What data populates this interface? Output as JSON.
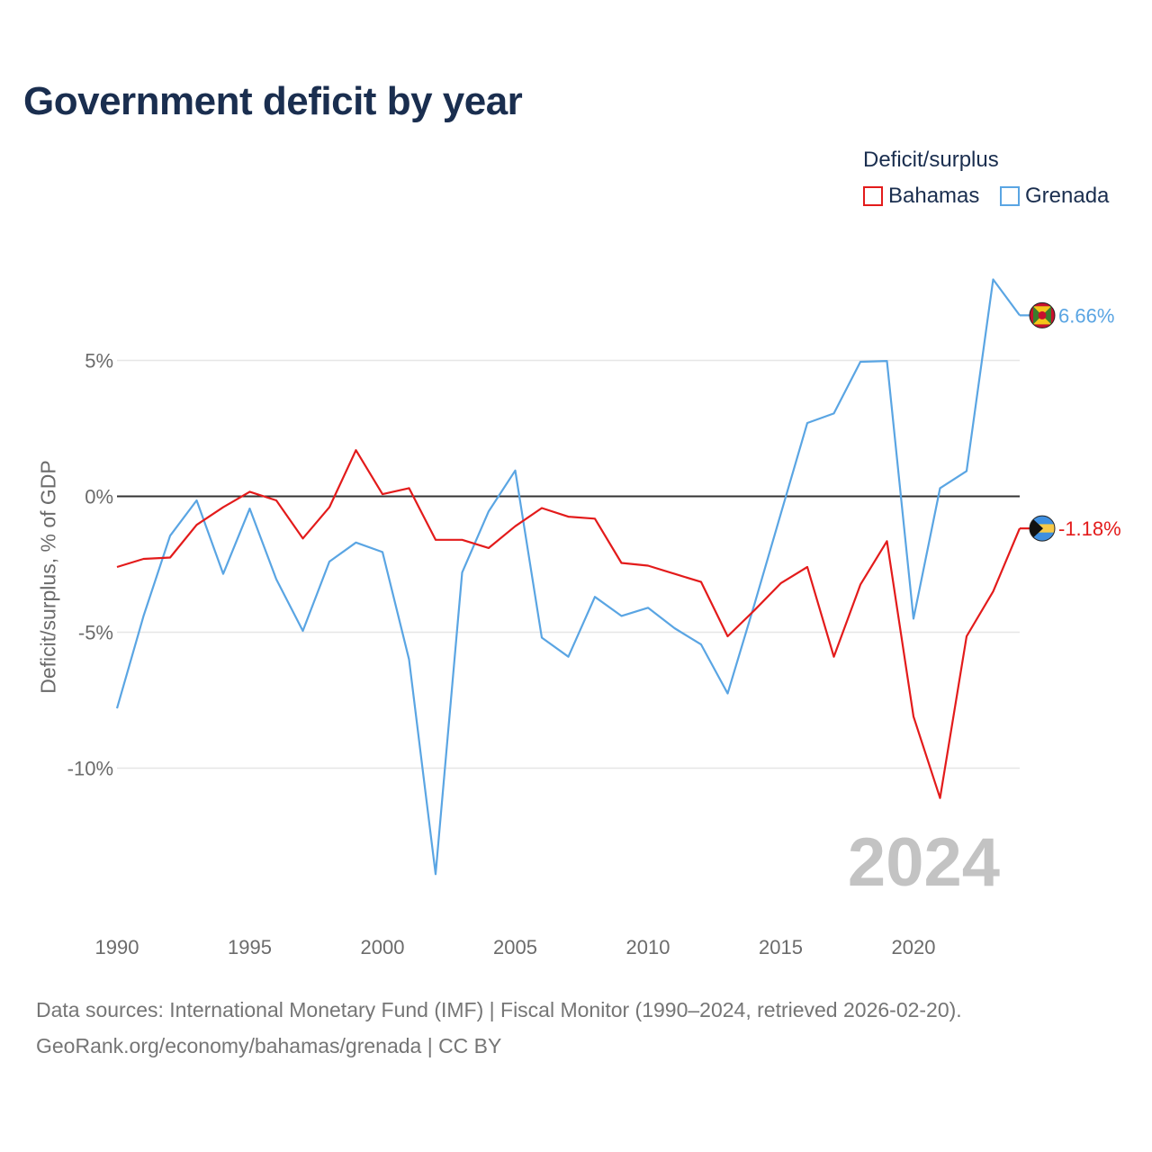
{
  "header": {
    "title": "Government deficit by year"
  },
  "legend": {
    "title": "Deficit/surplus",
    "items": [
      {
        "label": "Bahamas",
        "color": "#e31b1b"
      },
      {
        "label": "Grenada",
        "color": "#5aa5e3"
      }
    ]
  },
  "footer": {
    "source_line": "Data sources: International Monetary Fund (IMF) | Fiscal Monitor (1990–2024, retrieved 2026-02-20).",
    "url_line": "GeoRank.org/economy/bahamas/grenada | CC BY"
  },
  "chart_data": {
    "type": "line",
    "title": "Government deficit by year",
    "xlabel": "",
    "ylabel": "Deficit/surplus, % of GDP",
    "xlim": [
      1990,
      2024
    ],
    "ylim": [
      -15,
      8.5
    ],
    "x_ticks": [
      1990,
      1995,
      2000,
      2005,
      2010,
      2015,
      2020
    ],
    "y_ticks": [
      5,
      0,
      -5,
      -10
    ],
    "y_tick_labels": [
      "5%",
      "0%",
      "-5%",
      "-10%"
    ],
    "year_watermark": "2024",
    "grid": true,
    "legend_position": "top-right",
    "x": [
      1990,
      1991,
      1992,
      1993,
      1994,
      1995,
      1996,
      1997,
      1998,
      1999,
      2000,
      2001,
      2002,
      2003,
      2004,
      2005,
      2006,
      2007,
      2008,
      2009,
      2010,
      2011,
      2012,
      2013,
      2014,
      2015,
      2016,
      2017,
      2018,
      2019,
      2020,
      2021,
      2022,
      2023,
      2024
    ],
    "series": [
      {
        "name": "Bahamas",
        "color": "#e31b1b",
        "end_label": "-1.18%",
        "flag": "bahamas-flag",
        "values": [
          -2.6,
          -2.3,
          -2.25,
          -1.05,
          -0.4,
          0.17,
          -0.15,
          -1.55,
          -0.4,
          1.7,
          0.08,
          0.3,
          -1.6,
          -1.6,
          -1.9,
          -1.1,
          -0.43,
          -0.75,
          -0.82,
          -2.45,
          -2.55,
          -2.85,
          -3.15,
          -5.15,
          -4.2,
          -3.2,
          -2.6,
          -5.9,
          -3.25,
          -1.65,
          -8.1,
          -11.1,
          -5.15,
          -3.5,
          -1.18
        ]
      },
      {
        "name": "Grenada",
        "color": "#5aa5e3",
        "end_label": "6.66%",
        "flag": "grenada-flag",
        "values": [
          -7.8,
          -4.4,
          -1.45,
          -0.15,
          -2.85,
          -0.45,
          -3.05,
          -4.95,
          -2.4,
          -1.7,
          -2.05,
          -6.0,
          -13.9,
          -2.8,
          -0.55,
          0.95,
          -5.2,
          -5.9,
          -3.7,
          -4.4,
          -4.1,
          -4.85,
          -5.45,
          -7.25,
          -4.0,
          -0.65,
          2.7,
          3.05,
          4.95,
          4.98,
          -4.5,
          0.3,
          0.93,
          7.98,
          6.66
        ]
      }
    ]
  }
}
